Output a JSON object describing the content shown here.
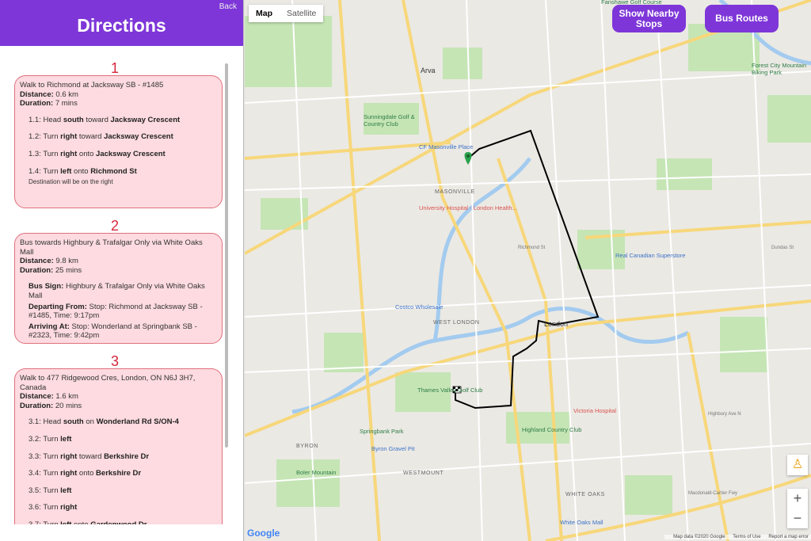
{
  "sidebar": {
    "title": "Directions",
    "back_label": "Back",
    "legs": [
      {
        "number": "1",
        "summary": "Walk to Richmond at Jacksway SB - #1485",
        "distance_label": "Distance:",
        "distance": "0.6 km",
        "duration_label": "Duration:",
        "duration": "7 mins",
        "steps": [
          {
            "id": "1.1:",
            "parts": [
              [
                "Head ",
                false
              ],
              [
                "south",
                true
              ],
              [
                " toward ",
                false
              ],
              [
                "Jacksway Crescent",
                true
              ]
            ]
          },
          {
            "id": "1.2:",
            "parts": [
              [
                "Turn ",
                false
              ],
              [
                "right",
                true
              ],
              [
                " toward ",
                false
              ],
              [
                "Jacksway Crescent",
                true
              ]
            ]
          },
          {
            "id": "1.3:",
            "parts": [
              [
                "Turn ",
                false
              ],
              [
                "right",
                true
              ],
              [
                " onto ",
                false
              ],
              [
                "Jacksway Crescent",
                true
              ]
            ]
          },
          {
            "id": "1.4:",
            "parts": [
              [
                "Turn ",
                false
              ],
              [
                "left",
                true
              ],
              [
                " onto ",
                false
              ],
              [
                "Richmond St",
                true
              ]
            ],
            "note": "Destination will be on the right"
          }
        ]
      },
      {
        "number": "2",
        "summary": "Bus towards Highbury & Trafalgar Only via White Oaks Mall",
        "distance_label": "Distance:",
        "distance": "9.8 km",
        "duration_label": "Duration:",
        "duration": "25 mins",
        "bus_sign_label": "Bus Sign:",
        "bus_sign": "Highbury & Trafalgar Only via White Oaks Mall",
        "departing_label": "Departing From:",
        "departing": "Stop: Richmond at Jacksway SB - #1485, Time: 9:17pm",
        "arriving_label": "Arriving At:",
        "arriving": "Stop: Wonderland at Springbank SB - #2323, Time: 9:42pm"
      },
      {
        "number": "3",
        "summary": "Walk to 477 Ridgewood Cres, London, ON N6J 3H7, Canada",
        "distance_label": "Distance:",
        "distance": "1.6 km",
        "duration_label": "Duration:",
        "duration": "20 mins",
        "steps": [
          {
            "id": "3.1:",
            "parts": [
              [
                "Head ",
                false
              ],
              [
                "south",
                true
              ],
              [
                " on ",
                false
              ],
              [
                "Wonderland Rd S/ON-4",
                true
              ]
            ]
          },
          {
            "id": "3.2:",
            "parts": [
              [
                "Turn ",
                false
              ],
              [
                "left",
                true
              ]
            ]
          },
          {
            "id": "3.3:",
            "parts": [
              [
                "Turn ",
                false
              ],
              [
                "right",
                true
              ],
              [
                " toward ",
                false
              ],
              [
                "Berkshire Dr",
                true
              ]
            ]
          },
          {
            "id": "3.4:",
            "parts": [
              [
                "Turn ",
                false
              ],
              [
                "right",
                true
              ],
              [
                " onto ",
                false
              ],
              [
                "Berkshire Dr",
                true
              ]
            ]
          },
          {
            "id": "3.5:",
            "parts": [
              [
                "Turn ",
                false
              ],
              [
                "left",
                true
              ]
            ]
          },
          {
            "id": "3.6:",
            "parts": [
              [
                "Turn ",
                false
              ],
              [
                "right",
                true
              ]
            ]
          },
          {
            "id": "3.7:",
            "parts": [
              [
                "Turn ",
                false
              ],
              [
                "left",
                true
              ],
              [
                " onto ",
                false
              ],
              [
                "Gardenwood Dr",
                true
              ]
            ]
          }
        ]
      }
    ]
  },
  "map": {
    "type_tabs": [
      "Map",
      "Satellite"
    ],
    "selected_type": "Map",
    "nearby_button": "Show Nearby Stops",
    "routes_button": "Bus Routes",
    "zoom_in": "+",
    "zoom_out": "−",
    "logo": "Google",
    "attribution": [
      "Map data ©2020 Google",
      "Terms of Use",
      "Report a map error"
    ],
    "labels": [
      {
        "text": "Fanshawe Golf Course",
        "kind": "poi"
      },
      {
        "text": "Forest City Mountain Biking Park",
        "kind": "poi"
      },
      {
        "text": "Arva",
        "kind": "city"
      },
      {
        "text": "Sunningdale Golf & Country Club",
        "kind": "poi"
      },
      {
        "text": "CF Masonville Place",
        "kind": "shop"
      },
      {
        "text": "MASONVILLE",
        "kind": "area"
      },
      {
        "text": "University Hospital - London Health...",
        "kind": "hosp"
      },
      {
        "text": "Real Canadian Superstore",
        "kind": "shop"
      },
      {
        "text": "Costco Wholesale",
        "kind": "shop"
      },
      {
        "text": "WEST LONDON",
        "kind": "area"
      },
      {
        "text": "London",
        "kind": "city"
      },
      {
        "text": "Thames Valley Golf Club",
        "kind": "poi"
      },
      {
        "text": "Victoria Hospital",
        "kind": "hosp"
      },
      {
        "text": "Highland Country Club",
        "kind": "poi"
      },
      {
        "text": "Springbank Park",
        "kind": "poi"
      },
      {
        "text": "BYRON",
        "kind": "area"
      },
      {
        "text": "Byron Gravel Pit",
        "kind": "shop"
      },
      {
        "text": "Boler Mountain",
        "kind": "poi"
      },
      {
        "text": "WESTMOUNT",
        "kind": "area"
      },
      {
        "text": "WHITE OAKS",
        "kind": "area"
      },
      {
        "text": "White Oaks Mall",
        "kind": "shop"
      },
      {
        "text": "Dundas St",
        "kind": "road"
      },
      {
        "text": "Macdonald-Cartier Fwy",
        "kind": "road"
      },
      {
        "text": "Highbury Ave N",
        "kind": "road"
      },
      {
        "text": "Richmond St",
        "kind": "road"
      }
    ],
    "colors": {
      "route": "#000000",
      "accent": "#7e36d8",
      "road": "#f7d77a",
      "water": "#9cc9f0",
      "park": "#c5e5b5"
    }
  }
}
